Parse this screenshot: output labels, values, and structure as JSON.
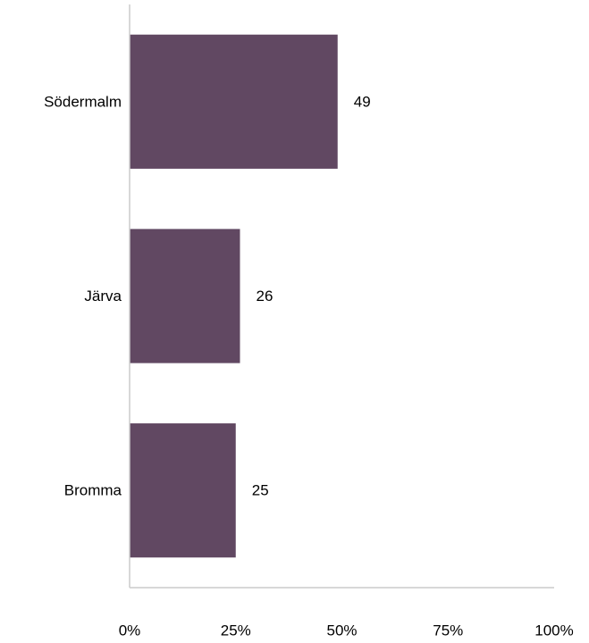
{
  "chart_data": {
    "type": "bar",
    "orientation": "horizontal",
    "categories": [
      "Södermalm",
      "Järva",
      "Bromma"
    ],
    "values": [
      49,
      26,
      25
    ],
    "data_labels": [
      "49",
      "26",
      "25"
    ],
    "x_ticks": [
      0,
      25,
      50,
      75,
      100
    ],
    "x_tick_labels": [
      "0%",
      "25%",
      "50%",
      "75%",
      "100%"
    ],
    "xlim": [
      0,
      100
    ],
    "grid": false,
    "legend": "none",
    "bar_color": "#614862",
    "axis_color": "#cccccc"
  }
}
